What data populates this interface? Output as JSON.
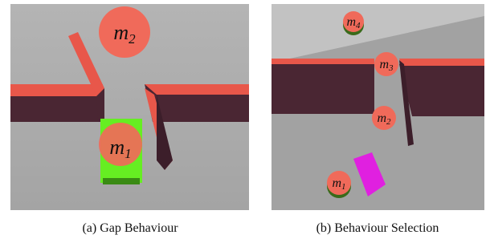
{
  "panels": [
    {
      "caption": "(a) Gap Behaviour",
      "labels": [
        {
          "base": "m",
          "sub": "2"
        },
        {
          "base": "m",
          "sub": "1"
        }
      ]
    },
    {
      "caption": "(b) Behaviour Selection",
      "labels": [
        {
          "base": "m",
          "sub": "4"
        },
        {
          "base": "m",
          "sub": "3"
        },
        {
          "base": "m",
          "sub": "2"
        },
        {
          "base": "m",
          "sub": "1"
        }
      ]
    }
  ]
}
